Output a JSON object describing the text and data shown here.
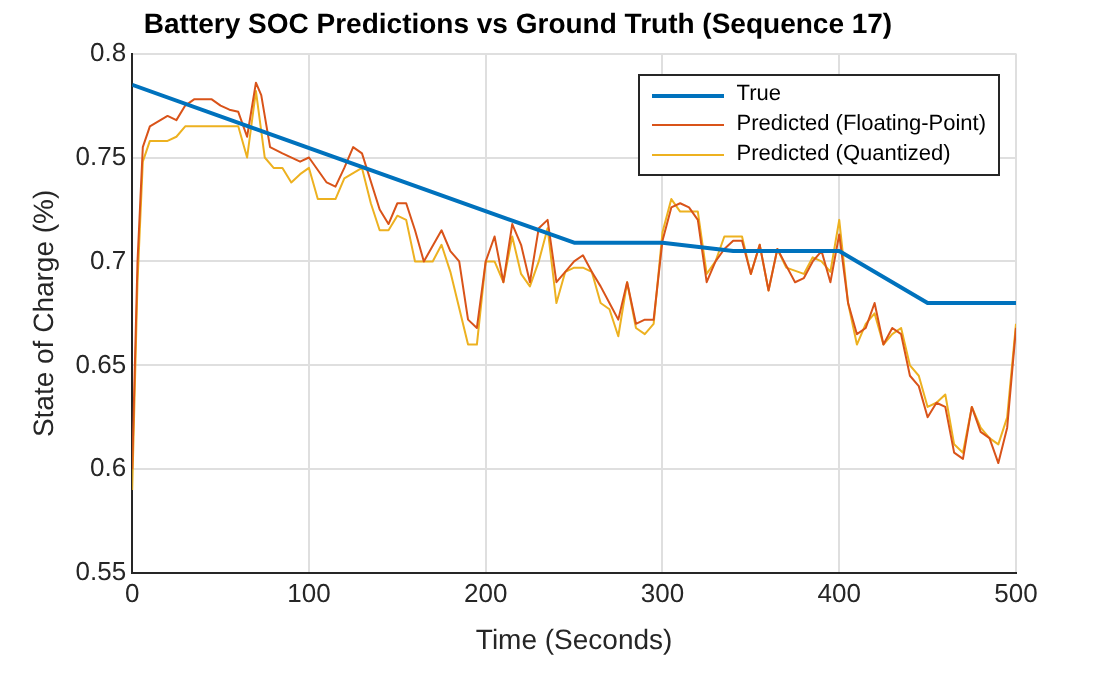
{
  "chart_data": {
    "type": "line",
    "title": "Battery SOC Predictions vs Ground Truth (Sequence 17)",
    "xlabel": "Time (Seconds)",
    "ylabel": "State of Charge (%)",
    "xlim": [
      0,
      500
    ],
    "xticks": [
      0,
      100,
      200,
      300,
      400,
      500
    ],
    "ylim": [
      0.55,
      0.8
    ],
    "yticks": [
      0.55,
      0.6,
      0.65,
      0.7,
      0.75,
      0.8
    ],
    "grid": true,
    "legend": "top right",
    "marker": "none",
    "line_style": "solid",
    "series": [
      {
        "name": "True",
        "color": "#0072bd",
        "x": [
          0,
          250,
          300,
          340,
          400,
          450,
          500
        ],
        "values": [
          0.785,
          0.709,
          0.709,
          0.705,
          0.705,
          0.68,
          0.68
        ]
      },
      {
        "name": "Predicted (Floating-Point)",
        "color": "#d95319",
        "x": [
          0,
          3,
          6,
          10,
          20,
          25,
          30,
          35,
          45,
          50,
          55,
          60,
          65,
          70,
          73,
          78,
          85,
          95,
          100,
          110,
          115,
          120,
          125,
          130,
          140,
          145,
          150,
          155,
          160,
          165,
          175,
          180,
          185,
          190,
          195,
          200,
          205,
          210,
          215,
          220,
          225,
          230,
          235,
          240,
          245,
          250,
          255,
          260,
          265,
          270,
          275,
          280,
          285,
          290,
          295,
          300,
          305,
          310,
          315,
          320,
          325,
          330,
          335,
          340,
          345,
          350,
          355,
          360,
          365,
          370,
          375,
          380,
          385,
          390,
          395,
          400,
          405,
          410,
          415,
          420,
          425,
          430,
          435,
          440,
          445,
          450,
          455,
          460,
          465,
          470,
          475,
          480,
          485,
          490,
          495,
          500
        ],
        "values": [
          0.6,
          0.7,
          0.755,
          0.765,
          0.77,
          0.768,
          0.775,
          0.778,
          0.778,
          0.775,
          0.773,
          0.772,
          0.76,
          0.786,
          0.78,
          0.755,
          0.752,
          0.748,
          0.75,
          0.738,
          0.736,
          0.745,
          0.755,
          0.752,
          0.725,
          0.718,
          0.728,
          0.728,
          0.715,
          0.7,
          0.715,
          0.705,
          0.7,
          0.672,
          0.668,
          0.7,
          0.712,
          0.69,
          0.718,
          0.708,
          0.69,
          0.716,
          0.72,
          0.69,
          0.695,
          0.7,
          0.703,
          0.695,
          0.688,
          0.68,
          0.672,
          0.69,
          0.67,
          0.672,
          0.672,
          0.71,
          0.726,
          0.728,
          0.726,
          0.72,
          0.69,
          0.7,
          0.706,
          0.71,
          0.71,
          0.694,
          0.708,
          0.686,
          0.706,
          0.698,
          0.69,
          0.692,
          0.7,
          0.705,
          0.69,
          0.713,
          0.68,
          0.665,
          0.668,
          0.68,
          0.66,
          0.668,
          0.665,
          0.645,
          0.64,
          0.625,
          0.632,
          0.63,
          0.608,
          0.605,
          0.63,
          0.618,
          0.615,
          0.603,
          0.62,
          0.668
        ]
      },
      {
        "name": "Predicted (Quantized)",
        "color": "#edb120",
        "x": [
          0,
          3,
          6,
          10,
          20,
          25,
          30,
          60,
          65,
          70,
          75,
          80,
          85,
          90,
          95,
          100,
          105,
          115,
          120,
          130,
          135,
          140,
          145,
          150,
          155,
          160,
          170,
          175,
          180,
          190,
          195,
          200,
          205,
          210,
          215,
          220,
          225,
          230,
          235,
          240,
          245,
          250,
          255,
          260,
          265,
          270,
          275,
          280,
          285,
          290,
          295,
          300,
          305,
          310,
          320,
          325,
          330,
          335,
          340,
          345,
          350,
          355,
          360,
          365,
          370,
          380,
          385,
          390,
          395,
          400,
          405,
          410,
          415,
          420,
          425,
          430,
          435,
          440,
          445,
          450,
          455,
          460,
          465,
          470,
          475,
          480,
          485,
          490,
          495,
          500
        ],
        "values": [
          0.59,
          0.69,
          0.748,
          0.758,
          0.758,
          0.76,
          0.765,
          0.765,
          0.75,
          0.782,
          0.75,
          0.745,
          0.745,
          0.738,
          0.742,
          0.745,
          0.73,
          0.73,
          0.74,
          0.745,
          0.728,
          0.715,
          0.715,
          0.722,
          0.72,
          0.7,
          0.7,
          0.708,
          0.695,
          0.66,
          0.66,
          0.7,
          0.7,
          0.69,
          0.712,
          0.694,
          0.688,
          0.7,
          0.716,
          0.68,
          0.695,
          0.697,
          0.697,
          0.695,
          0.68,
          0.677,
          0.664,
          0.69,
          0.668,
          0.665,
          0.67,
          0.714,
          0.73,
          0.724,
          0.724,
          0.694,
          0.7,
          0.712,
          0.712,
          0.712,
          0.694,
          0.708,
          0.686,
          0.706,
          0.697,
          0.694,
          0.702,
          0.7,
          0.695,
          0.72,
          0.68,
          0.66,
          0.67,
          0.675,
          0.66,
          0.665,
          0.668,
          0.65,
          0.645,
          0.63,
          0.632,
          0.636,
          0.612,
          0.608,
          0.63,
          0.62,
          0.615,
          0.612,
          0.625,
          0.67
        ]
      }
    ]
  }
}
